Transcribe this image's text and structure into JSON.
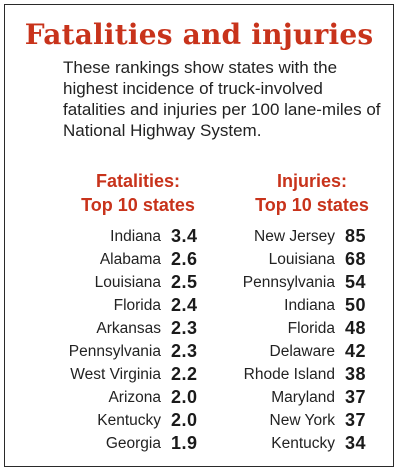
{
  "chart_data": {
    "type": "table",
    "title": "Fatalities and injuries",
    "description": "These rankings show states with the highest incidence of truck-involved fatalities and injuries per 100 lane-miles of National Highway System.",
    "tables": [
      {
        "heading_line1": "Fatalities:",
        "heading_line2": "Top 10 states",
        "rows": [
          {
            "state": "Indiana",
            "value": "3.4"
          },
          {
            "state": "Alabama",
            "value": "2.6"
          },
          {
            "state": "Louisiana",
            "value": "2.5"
          },
          {
            "state": "Florida",
            "value": "2.4"
          },
          {
            "state": "Arkansas",
            "value": "2.3"
          },
          {
            "state": "Pennsylvania",
            "value": "2.3"
          },
          {
            "state": "West Virginia",
            "value": "2.2"
          },
          {
            "state": "Arizona",
            "value": "2.0"
          },
          {
            "state": "Kentucky",
            "value": "2.0"
          },
          {
            "state": "Georgia",
            "value": "1.9"
          }
        ]
      },
      {
        "heading_line1": "Injuries:",
        "heading_line2": "Top 10 states",
        "rows": [
          {
            "state": "New Jersey",
            "value": "85"
          },
          {
            "state": "Louisiana",
            "value": "68"
          },
          {
            "state": "Pennsylvania",
            "value": "54"
          },
          {
            "state": "Indiana",
            "value": "50"
          },
          {
            "state": "Florida",
            "value": "48"
          },
          {
            "state": "Delaware",
            "value": "42"
          },
          {
            "state": "Rhode Island",
            "value": "38"
          },
          {
            "state": "Maryland",
            "value": "37"
          },
          {
            "state": "New York",
            "value": "37"
          },
          {
            "state": "Kentucky",
            "value": "34"
          }
        ]
      }
    ]
  },
  "colors": {
    "accent": "#c8331b",
    "text": "#222222",
    "border": "#2a2a2a"
  }
}
